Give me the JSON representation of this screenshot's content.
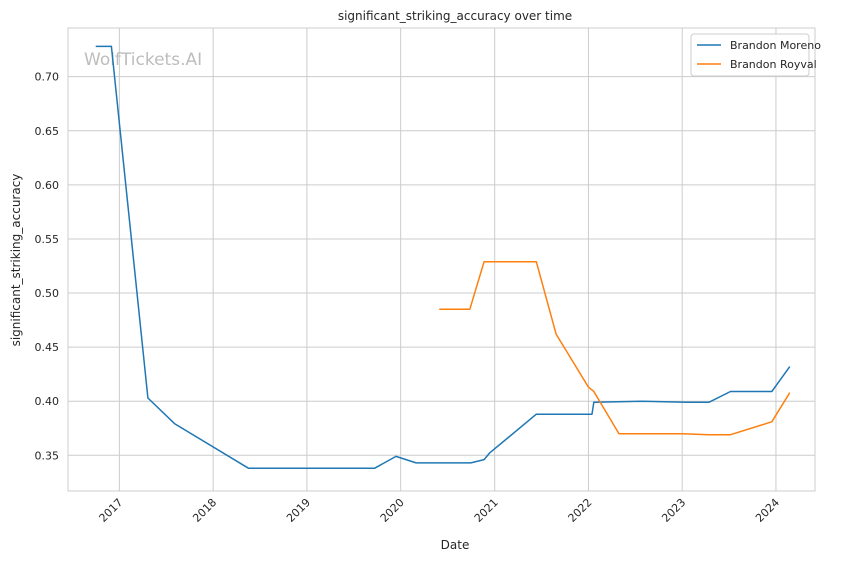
{
  "chart_data": {
    "type": "line",
    "title": "significant_striking_accuracy over time",
    "xlabel": "Date",
    "ylabel": "significant_striking_accuracy",
    "watermark": "WolfTickets.AI",
    "grid": true,
    "legend_position": "top-right",
    "xlim": [
      "2016-06-15",
      "2024-06-01"
    ],
    "ylim": [
      0.317,
      0.745
    ],
    "x_ticks": [
      {
        "date": "2017-01-01",
        "label": "2017"
      },
      {
        "date": "2018-01-01",
        "label": "2018"
      },
      {
        "date": "2019-01-01",
        "label": "2019"
      },
      {
        "date": "2020-01-01",
        "label": "2020"
      },
      {
        "date": "2021-01-01",
        "label": "2021"
      },
      {
        "date": "2022-01-01",
        "label": "2022"
      },
      {
        "date": "2023-01-01",
        "label": "2023"
      },
      {
        "date": "2024-01-01",
        "label": "2024"
      }
    ],
    "y_ticks": [
      {
        "value": 0.35,
        "label": "0.35"
      },
      {
        "value": 0.4,
        "label": "0.40"
      },
      {
        "value": 0.45,
        "label": "0.45"
      },
      {
        "value": 0.5,
        "label": "0.50"
      },
      {
        "value": 0.55,
        "label": "0.55"
      },
      {
        "value": 0.6,
        "label": "0.60"
      },
      {
        "value": 0.65,
        "label": "0.65"
      },
      {
        "value": 0.7,
        "label": "0.70"
      }
    ],
    "series": [
      {
        "name": "Brandon Moreno",
        "color": "#1f77b4",
        "points": [
          {
            "x": "2016-10-01",
            "y": 0.728
          },
          {
            "x": "2016-12-01",
            "y": 0.728
          },
          {
            "x": "2017-04-22",
            "y": 0.403
          },
          {
            "x": "2017-08-05",
            "y": 0.379
          },
          {
            "x": "2018-05-19",
            "y": 0.338
          },
          {
            "x": "2019-09-21",
            "y": 0.338
          },
          {
            "x": "2019-12-14",
            "y": 0.349
          },
          {
            "x": "2020-03-01",
            "y": 0.343
          },
          {
            "x": "2020-09-30",
            "y": 0.343
          },
          {
            "x": "2020-11-21",
            "y": 0.346
          },
          {
            "x": "2020-12-12",
            "y": 0.352
          },
          {
            "x": "2021-06-12",
            "y": 0.388
          },
          {
            "x": "2022-01-15",
            "y": 0.388
          },
          {
            "x": "2022-01-22",
            "y": 0.399
          },
          {
            "x": "2022-07-30",
            "y": 0.4
          },
          {
            "x": "2023-01-21",
            "y": 0.399
          },
          {
            "x": "2023-04-15",
            "y": 0.399
          },
          {
            "x": "2023-07-08",
            "y": 0.409
          },
          {
            "x": "2023-12-16",
            "y": 0.409
          },
          {
            "x": "2024-02-24",
            "y": 0.432
          }
        ]
      },
      {
        "name": "Brandon Royval",
        "color": "#ff7f0e",
        "points": [
          {
            "x": "2020-05-30",
            "y": 0.485
          },
          {
            "x": "2020-09-26",
            "y": 0.485
          },
          {
            "x": "2020-11-21",
            "y": 0.529
          },
          {
            "x": "2021-06-12",
            "y": 0.529
          },
          {
            "x": "2021-08-28",
            "y": 0.462
          },
          {
            "x": "2022-01-01",
            "y": 0.413
          },
          {
            "x": "2022-01-22",
            "y": 0.409
          },
          {
            "x": "2022-04-30",
            "y": 0.37
          },
          {
            "x": "2023-01-01",
            "y": 0.37
          },
          {
            "x": "2023-04-15",
            "y": 0.369
          },
          {
            "x": "2023-07-08",
            "y": 0.369
          },
          {
            "x": "2023-12-16",
            "y": 0.381
          },
          {
            "x": "2024-02-24",
            "y": 0.408
          }
        ]
      }
    ]
  }
}
